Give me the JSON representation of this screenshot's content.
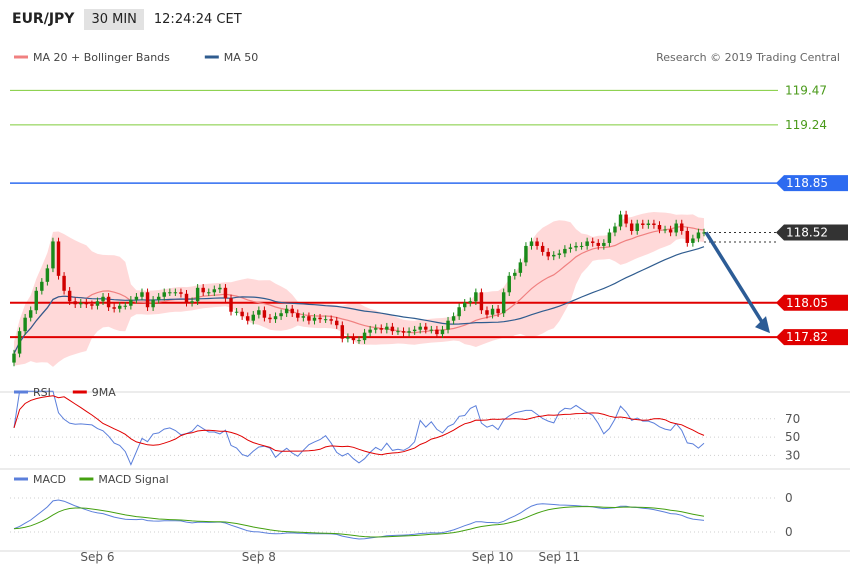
{
  "header": {
    "symbol": "EUR/JPY",
    "timeframe": "30 MIN",
    "time": "12:24:24 CET"
  },
  "copyright": "Research © 2019 Trading Central",
  "legends": {
    "price": [
      {
        "label": "MA 20 + Bollinger Bands",
        "color": "#f08080"
      },
      {
        "label": "MA 50",
        "color": "#2f5c8f"
      }
    ],
    "rsi": [
      {
        "label": "RSI",
        "color": "#5b7fdb"
      },
      {
        "label": "9MA",
        "color": "#e00000"
      }
    ],
    "macd": [
      {
        "label": "MACD",
        "color": "#5b7fdb"
      },
      {
        "label": "MACD Signal",
        "color": "#44a010"
      }
    ]
  },
  "colors": {
    "up": "#1a8a1a",
    "down": "#d00000",
    "band": "#ffd2d2",
    "resistance_green": "#7fcc3a",
    "blue_level": "#2d6bf0",
    "red_level": "#e00000",
    "arrow": "#2c5c96"
  },
  "chart_data": [
    {
      "type": "candlestick",
      "x_tick_labels": [
        "Sep 6",
        "Sep 8",
        "Sep 10",
        "Sep 11"
      ],
      "ylim": [
        117.52,
        119.62
      ],
      "levels": [
        {
          "value": 119.47,
          "label": "119.47",
          "style": "green-line"
        },
        {
          "value": 119.24,
          "label": "119.24",
          "style": "green-line"
        },
        {
          "value": 118.85,
          "label": "118.85",
          "style": "blue-tag"
        },
        {
          "value": 118.52,
          "label": "118.52",
          "style": "current-price-tag"
        },
        {
          "value": 118.05,
          "label": "118.05",
          "style": "red-tag"
        },
        {
          "value": 117.82,
          "label": "117.82",
          "style": "red-tag"
        }
      ],
      "closes": [
        117.71,
        117.86,
        117.95,
        118.0,
        118.13,
        118.19,
        118.28,
        118.46,
        118.23,
        118.13,
        118.06,
        118.04,
        118.05,
        118.04,
        118.03,
        118.06,
        118.09,
        118.02,
        118.01,
        118.03,
        118.03,
        118.07,
        118.09,
        118.12,
        118.02,
        118.07,
        118.09,
        118.12,
        118.12,
        118.12,
        118.11,
        118.05,
        118.06,
        118.15,
        118.12,
        118.12,
        118.14,
        118.15,
        118.08,
        117.99,
        117.99,
        117.96,
        117.93,
        117.97,
        118.0,
        117.95,
        117.94,
        117.96,
        117.98,
        118.01,
        117.98,
        117.95,
        117.96,
        117.93,
        117.95,
        117.94,
        117.94,
        117.93,
        117.9,
        117.81,
        117.82,
        117.8,
        117.8,
        117.85,
        117.87,
        117.88,
        117.87,
        117.89,
        117.86,
        117.86,
        117.85,
        117.86,
        117.87,
        117.89,
        117.87,
        117.87,
        117.84,
        117.87,
        117.93,
        117.96,
        118.02,
        118.05,
        118.06,
        118.12,
        118.0,
        117.97,
        118.01,
        117.98,
        118.12,
        118.23,
        118.25,
        118.32,
        118.43,
        118.46,
        118.43,
        118.39,
        118.36,
        118.37,
        118.38,
        118.41,
        118.42,
        118.43,
        118.43,
        118.46,
        118.45,
        118.43,
        118.45,
        118.52,
        118.56,
        118.64,
        118.58,
        118.53,
        118.58,
        118.57,
        118.58,
        118.57,
        118.54,
        118.54,
        118.52,
        118.58,
        118.53,
        118.45,
        118.48,
        118.52,
        118.52
      ]
    },
    {
      "type": "line",
      "title": "RSI",
      "y_ticks": [
        70,
        50,
        30
      ],
      "ylim": [
        25,
        85
      ]
    },
    {
      "type": "line",
      "title": "MACD",
      "y_ticks": [
        "0",
        "0"
      ]
    }
  ]
}
